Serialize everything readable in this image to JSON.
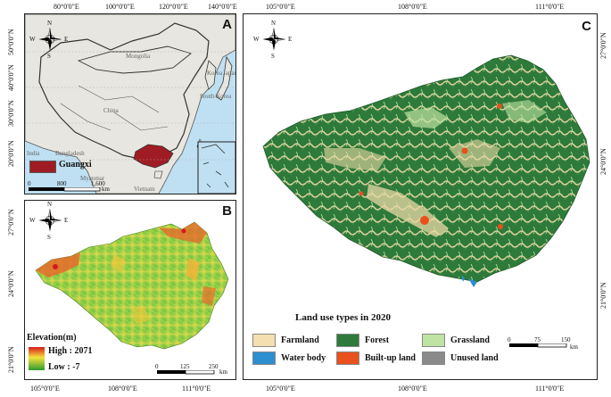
{
  "panel_a": {
    "letter": "A",
    "top_ticks": [
      "80°0'0\"E",
      "100°0'0\"E",
      "120°0'0\"E",
      "140°0'0\"E"
    ],
    "left_ticks": [
      "50°0'0\"N",
      "40°0'0\"N",
      "30°0'0\"N",
      "20°0'0\"N"
    ],
    "place_labels": {
      "mongolia": "Mongolia",
      "china": "China",
      "korea": "Korea",
      "south_korea": "South Korea",
      "japan": "Japan",
      "india": "India",
      "bangladesh": "Bangladesh",
      "myanmar": "Myanmar",
      "vietnam": "Vietnam"
    },
    "legend_label": "Guangxi",
    "scale_labels": [
      "0",
      "800",
      "1,600"
    ],
    "scale_unit": "km",
    "colors": {
      "land": "#e8e6e0",
      "sea": "#bfe0f2",
      "guangxi": "#a01c24"
    }
  },
  "panel_b": {
    "letter": "B",
    "left_ticks": [
      "27°0'0\"N",
      "24°0'0\"N",
      "21°0'0\"N"
    ],
    "bottom_ticks": [
      "105°0'0\"E",
      "108°0'0\"E",
      "111°0'0\"E"
    ],
    "legend_title": "Elevation(m)",
    "high_label": "High : 2071",
    "low_label": "Low : -7",
    "scale_labels": [
      "0",
      "125",
      "250"
    ],
    "scale_unit": "km",
    "colors": {
      "high": "#d7191c",
      "mid": "#f4e23c",
      "low": "#2f9a2f"
    }
  },
  "panel_c": {
    "letter": "C",
    "top_ticks": [
      "105°0'0\"E",
      "108°0'0\"E",
      "111°0'0\"E"
    ],
    "bottom_ticks": [
      "105°0'0\"E",
      "108°0'0\"E",
      "111°0'0\"E"
    ],
    "right_ticks": [
      "27°0'0\"N",
      "24°0'0\"N",
      "21°0'0\"N"
    ],
    "legend_title": "Land use types in 2020",
    "legend_items": [
      {
        "label": "Farmland",
        "color": "#f3dfb0"
      },
      {
        "label": "Forest",
        "color": "#2d7a3a"
      },
      {
        "label": "Grassland",
        "color": "#bfe3a3"
      },
      {
        "label": "Water body",
        "color": "#2d8fd0"
      },
      {
        "label": "Built-up land",
        "color": "#e8501d"
      },
      {
        "label": "Unused land",
        "color": "#8a8a8a"
      }
    ],
    "scale_labels": [
      "0",
      "75",
      "150"
    ],
    "scale_unit": "km"
  },
  "compass": {
    "n": "N",
    "s": "S",
    "e": "E",
    "w": "W"
  }
}
